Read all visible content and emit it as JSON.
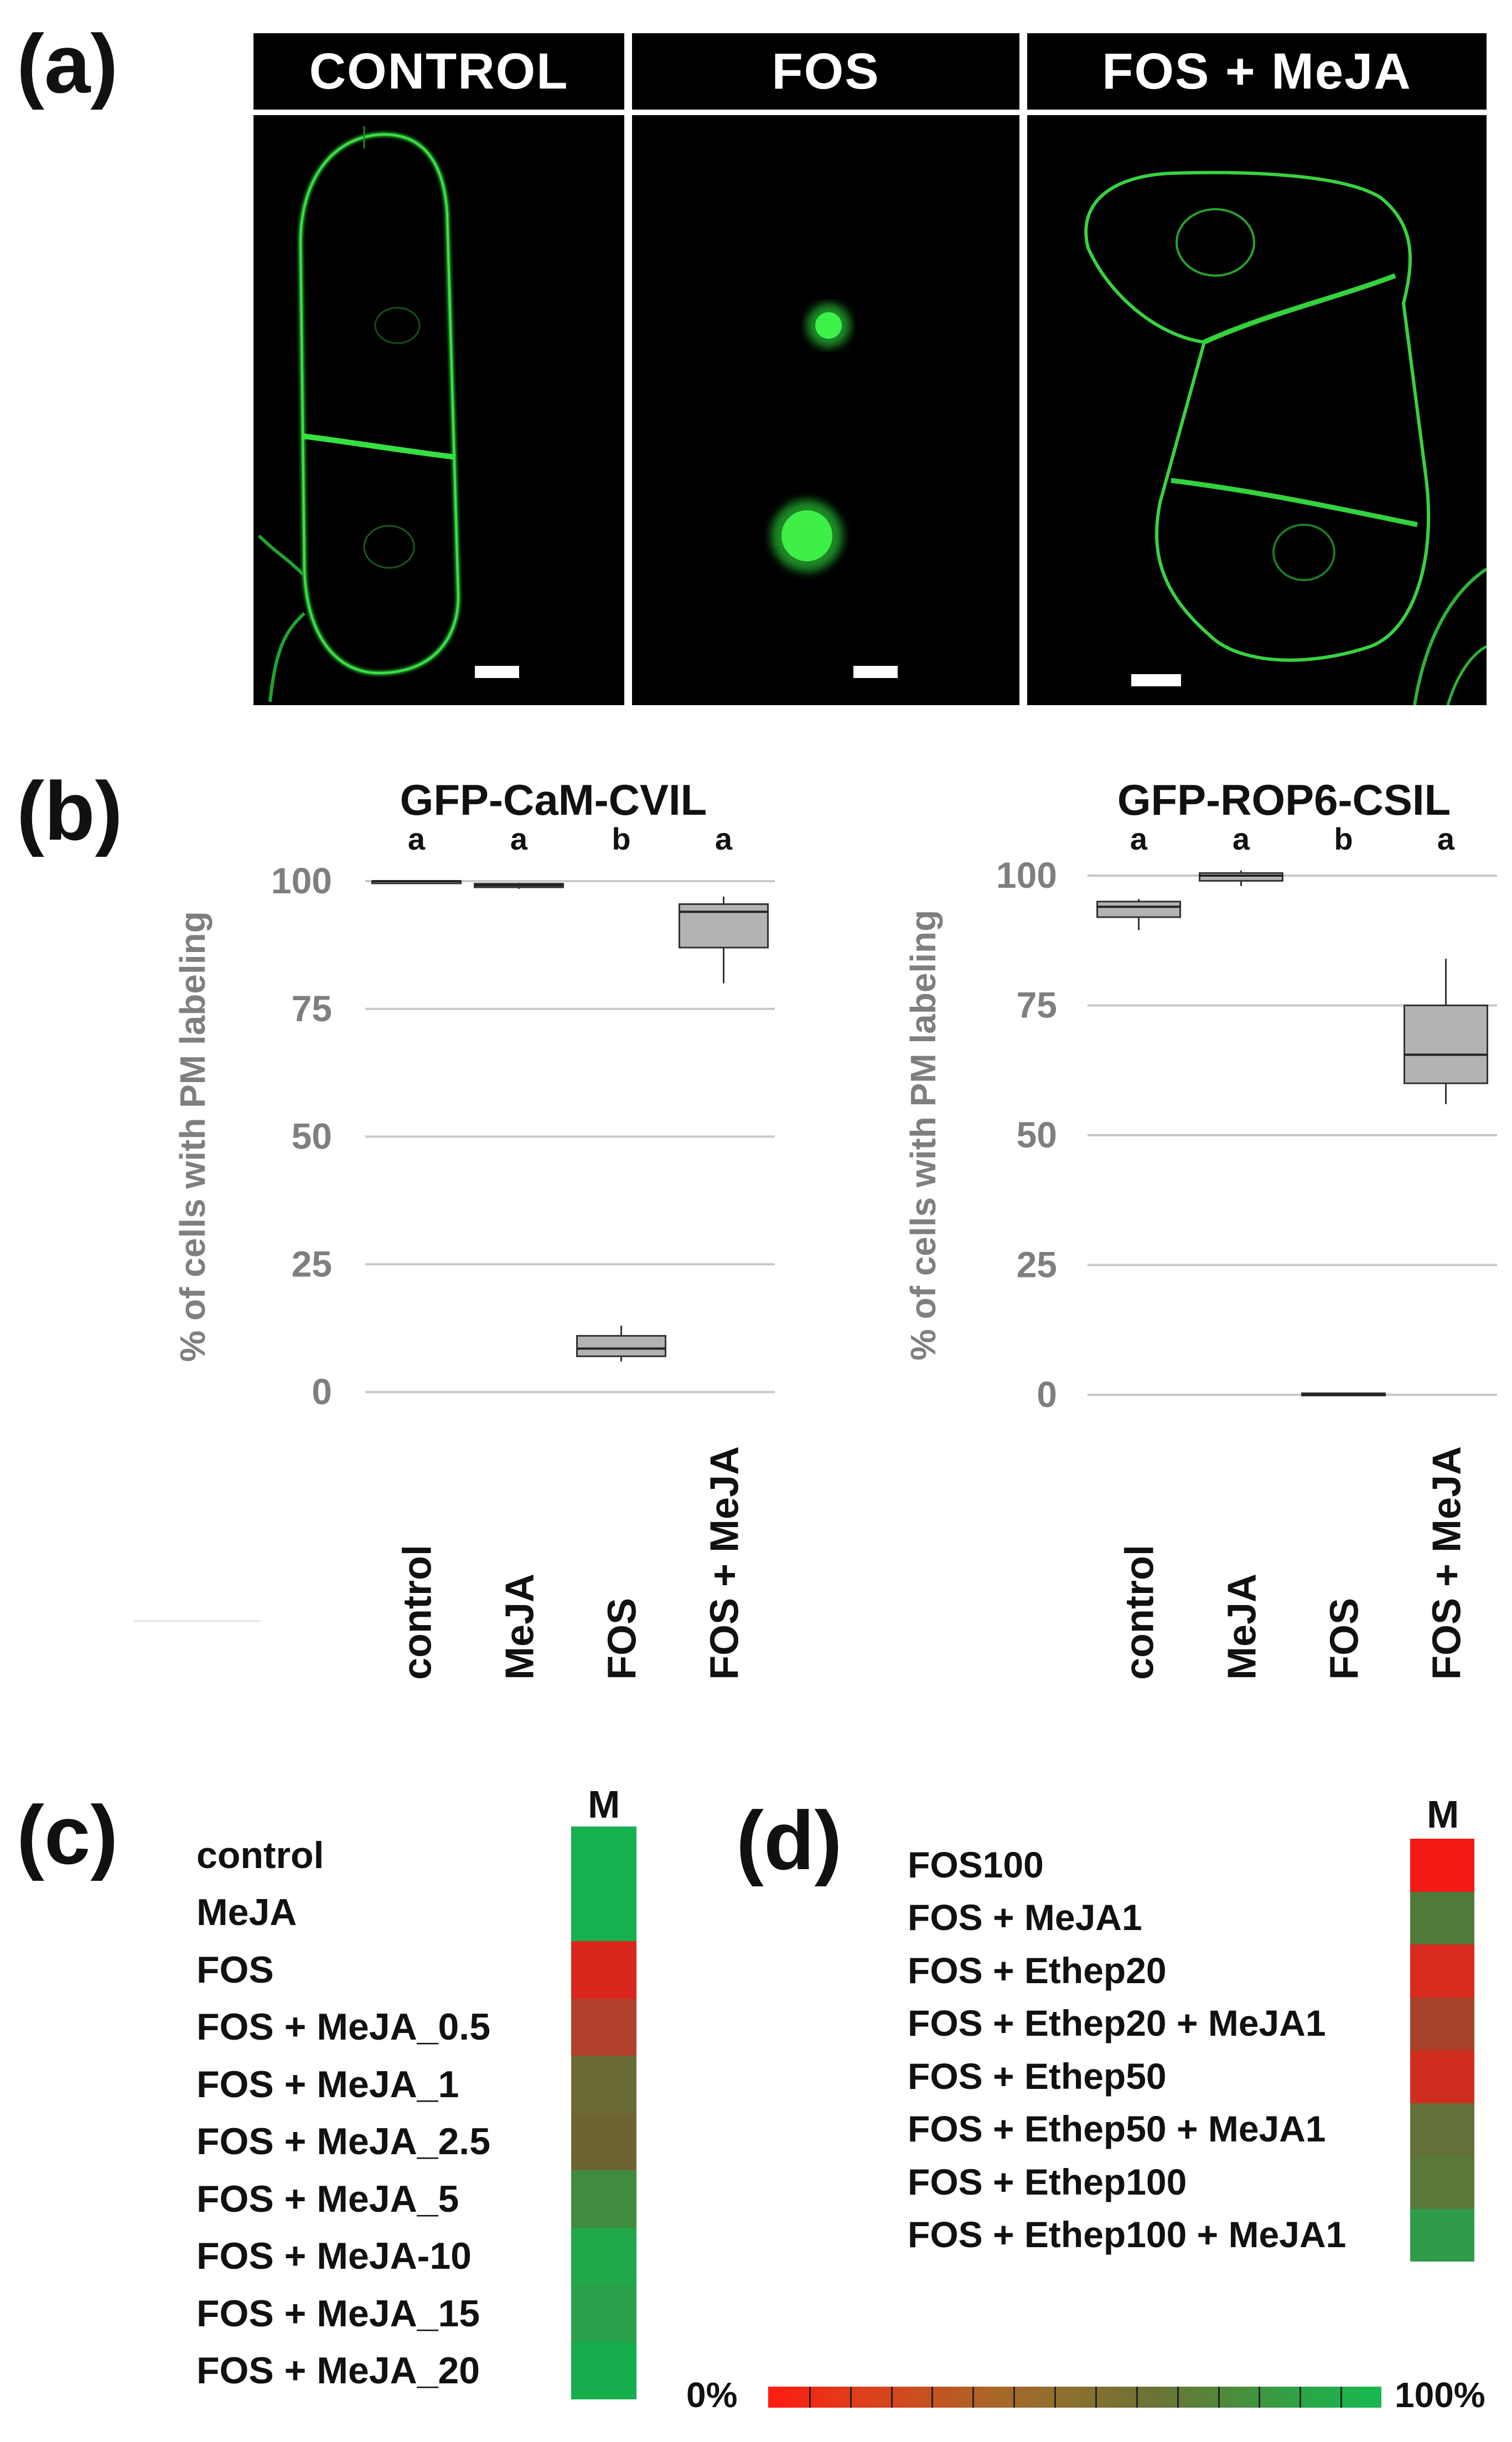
{
  "panel_a": {
    "letter": "(a)",
    "headers": [
      "CONTROL",
      "FOS",
      "FOS + MeJA"
    ]
  },
  "panel_b": {
    "letter": "(b)"
  },
  "panel_c": {
    "letter": "(c)",
    "column_header": "M",
    "rows": [
      "control",
      "MeJA",
      "FOS",
      "FOS + MeJA_0.5",
      "FOS + MeJA_1",
      "FOS + MeJA_2.5",
      "FOS + MeJA_5",
      "FOS + MeJA-10",
      "FOS + MeJA_15",
      "FOS + MeJA_20"
    ],
    "colors": [
      "#16b04f",
      "#16b04f",
      "#d9261c",
      "#b2402a",
      "#6b6b35",
      "#6e6433",
      "#3f8c40",
      "#21a84a",
      "#2aa04a",
      "#16ad4c"
    ]
  },
  "panel_d": {
    "letter": "(d)",
    "column_header": "M",
    "rows": [
      "FOS100",
      "FOS + MeJA1",
      "FOS + Ethep20",
      "FOS + Ethep20 + MeJA1",
      "FOS + Ethep50",
      "FOS + Ethep50 + MeJA1",
      "FOS + Ethep100",
      "FOS + Ethep100 + MeJA1"
    ],
    "colors": [
      "#f41a14",
      "#517a3a",
      "#d82a1e",
      "#a6442b",
      "#cf2d1f",
      "#64703a",
      "#5a7838",
      "#2f9c49"
    ]
  },
  "scale": {
    "min_label": "0%",
    "max_label": "100%",
    "colors": [
      "#ff1a12",
      "#e33a1a",
      "#c8501f",
      "#a8682a",
      "#8a7030",
      "#6c7236",
      "#4f8a3c",
      "#2aa646",
      "#18b850"
    ]
  },
  "chart_data": [
    {
      "type": "box",
      "title": "GFP-CaM-CVIL",
      "ylabel": "% of cells with PM labeling",
      "ylim": [
        0,
        100
      ],
      "yticks": [
        0,
        25,
        50,
        75,
        100
      ],
      "grid": true,
      "categories": [
        "control",
        "MeJA",
        "FOS",
        "FOS + MeJA"
      ],
      "significance": [
        "a",
        "a",
        "b",
        "a"
      ],
      "boxes": [
        {
          "min": 100,
          "q1": 100,
          "median": 100,
          "q3": 100,
          "max": 100
        },
        {
          "min": 98.5,
          "q1": 98.8,
          "median": 99.2,
          "q3": 99.5,
          "max": 99.7
        },
        {
          "min": 6,
          "q1": 7,
          "median": 8.5,
          "q3": 11,
          "max": 13
        },
        {
          "min": 80,
          "q1": 87,
          "median": 94,
          "q3": 95.5,
          "max": 97
        }
      ]
    },
    {
      "type": "box",
      "title": "GFP-ROP6-CSIL",
      "ylabel": "% of cells with PM labeling",
      "ylim": [
        0,
        100
      ],
      "yticks": [
        0,
        25,
        50,
        75,
        100
      ],
      "grid": true,
      "categories": [
        "control",
        "MeJA",
        "FOS",
        "FOS + MeJA"
      ],
      "significance": [
        "a",
        "a",
        "b",
        "a"
      ],
      "boxes": [
        {
          "min": 89.5,
          "q1": 92,
          "median": 94,
          "q3": 95,
          "max": 95.5
        },
        {
          "min": 98,
          "q1": 99,
          "median": 100,
          "q3": 100.5,
          "max": 101
        },
        {
          "min": 0,
          "q1": 0,
          "median": 0,
          "q3": 0.3,
          "max": 0.4
        },
        {
          "min": 56,
          "q1": 60,
          "median": 65.5,
          "q3": 75,
          "max": 84
        }
      ]
    }
  ]
}
